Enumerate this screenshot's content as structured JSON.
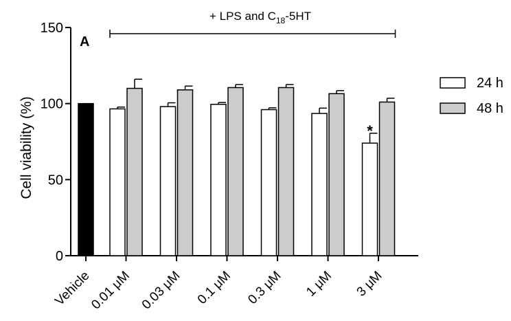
{
  "chart_data": {
    "type": "bar",
    "panel_label": "A",
    "bracket_label": "+ LPS and C",
    "bracket_label_sub": "18",
    "bracket_label_tail": "-5HT",
    "ylabel": "Cell viability (%)",
    "ylim": [
      0,
      150
    ],
    "yticks": [
      0,
      50,
      100,
      150
    ],
    "categories": [
      "Vehicle",
      "0.01 μM",
      "0.03 μM",
      "0.1 μM",
      "0.3 μM",
      "1 μM",
      "3 μM"
    ],
    "control": {
      "category": "Vehicle",
      "value": 100,
      "color": "#000000"
    },
    "series": [
      {
        "name": "24 h",
        "color": "#ffffff",
        "values": [
          null,
          96.5,
          98,
          99.5,
          96,
          93.5,
          74
        ],
        "errors": [
          null,
          1.2,
          2.5,
          1.2,
          1.2,
          3.5,
          6.5
        ]
      },
      {
        "name": "48 h",
        "color": "#cccccc",
        "values": [
          null,
          110,
          109,
          110.5,
          110.5,
          106.5,
          101
        ],
        "errors": [
          null,
          6,
          2.5,
          2,
          2,
          2,
          2.5
        ]
      }
    ],
    "annotations": [
      {
        "category": "3 μM",
        "series": "24 h",
        "text": "*"
      }
    ],
    "legend_position": "right",
    "grid": false
  }
}
